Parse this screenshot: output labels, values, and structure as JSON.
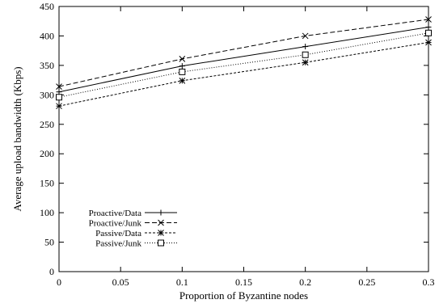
{
  "chart_data": {
    "type": "line",
    "title": "",
    "xlabel": "Proportion of Byzantine nodes",
    "ylabel": "Average upload bandwidth (Kbps)",
    "xlim": [
      0,
      0.3
    ],
    "ylim": [
      0,
      450
    ],
    "xticks": [
      0,
      0.05,
      0.1,
      0.15,
      0.2,
      0.25,
      0.3
    ],
    "xtick_labels": [
      "0",
      "0.05",
      "0.1",
      "0.15",
      "0.2",
      "0.25",
      "0.3"
    ],
    "yticks": [
      0,
      50,
      100,
      150,
      200,
      250,
      300,
      350,
      400,
      450
    ],
    "ytick_labels": [
      "0",
      "50",
      "100",
      "150",
      "200",
      "250",
      "300",
      "350",
      "400",
      "450"
    ],
    "x": [
      0,
      0.1,
      0.2,
      0.3
    ],
    "grid": false,
    "legend_position": "bottom-left",
    "series": [
      {
        "name": "Proactive/Data",
        "values": [
          305,
          349,
          382,
          415
        ],
        "marker": "plus",
        "dash": "none",
        "color": "#000000"
      },
      {
        "name": "Proactive/Junk",
        "values": [
          314,
          361,
          400,
          428
        ],
        "marker": "x",
        "dash": "6,3",
        "color": "#000000"
      },
      {
        "name": "Passive/Data",
        "values": [
          281,
          324,
          355,
          389
        ],
        "marker": "star",
        "dash": "3,2",
        "color": "#000000"
      },
      {
        "name": "Passive/Junk",
        "values": [
          296,
          339,
          368,
          405
        ],
        "marker": "square",
        "dash": "1,2",
        "color": "#000000"
      }
    ]
  }
}
